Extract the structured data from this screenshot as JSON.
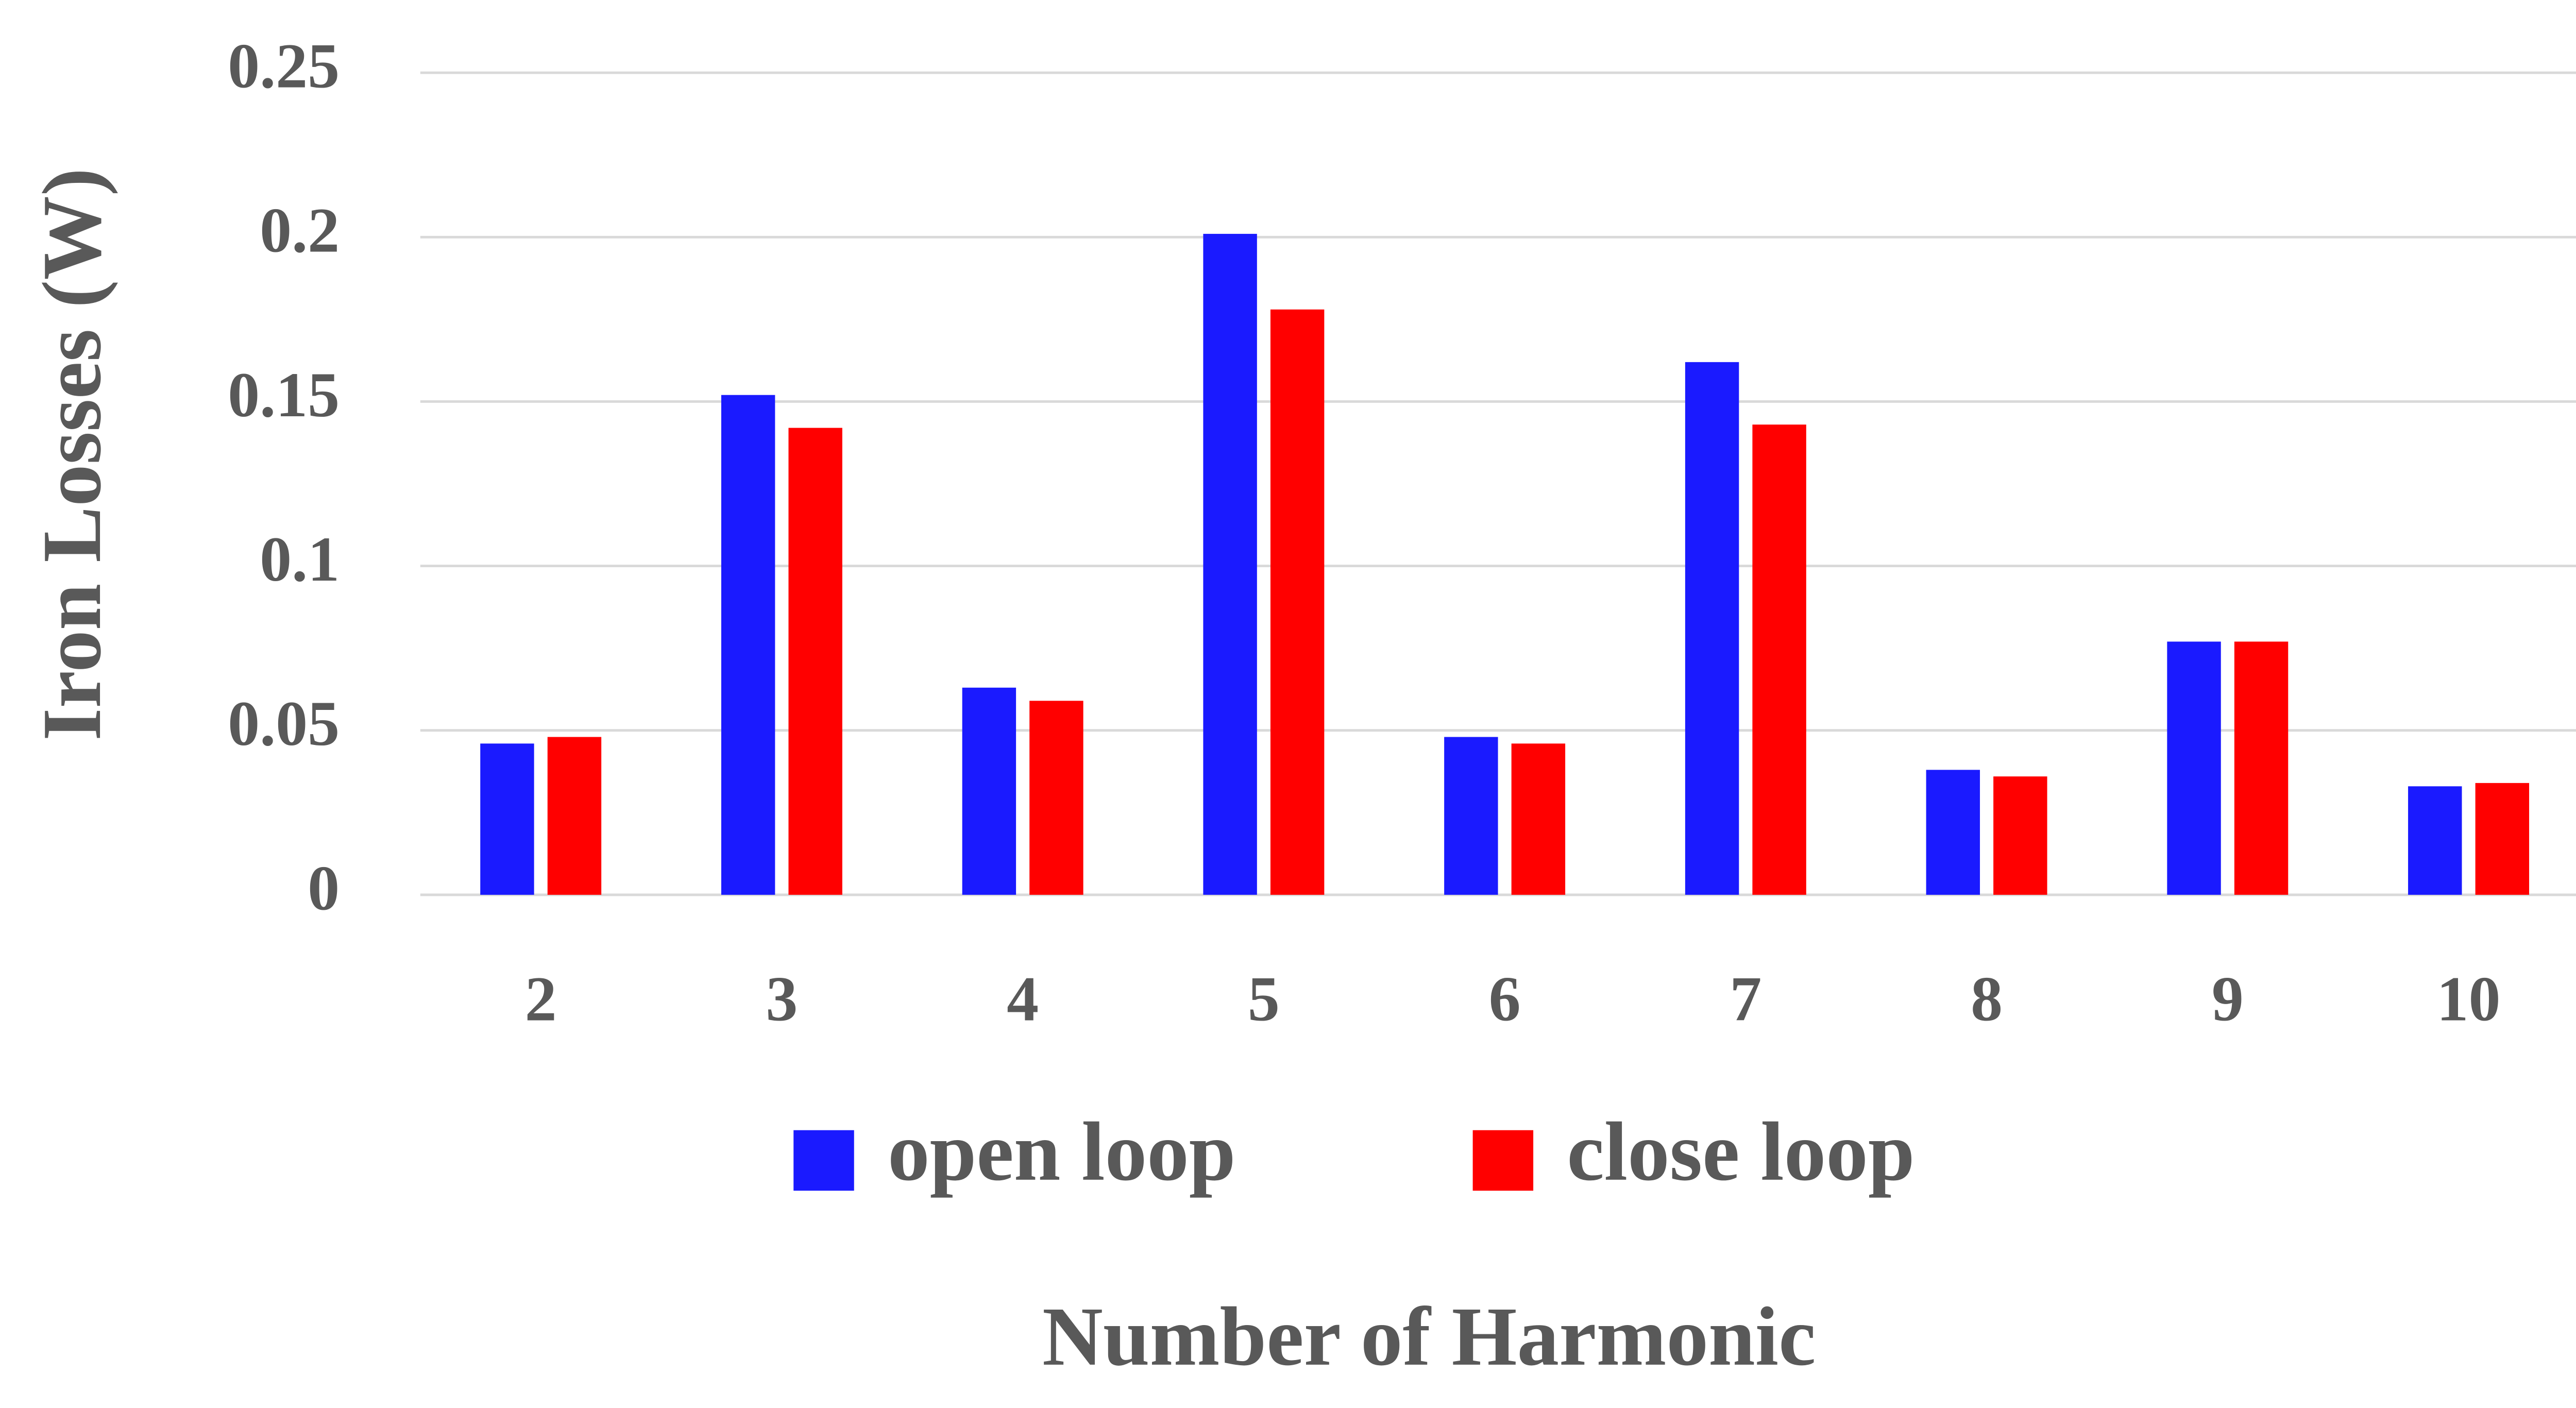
{
  "chart_data": {
    "type": "bar",
    "x_label": "Number of Harmonic",
    "y_label": "Iron Losses (W)",
    "categories": [
      "2",
      "3",
      "4",
      "5",
      "6",
      "7",
      "8",
      "9",
      "10"
    ],
    "series": [
      {
        "name": "open loop",
        "color": "#1a1aff",
        "values": [
          0.046,
          0.152,
          0.063,
          0.201,
          0.048,
          0.162,
          0.038,
          0.077,
          0.033
        ]
      },
      {
        "name": "close loop",
        "color": "#ff0000",
        "values": [
          0.048,
          0.142,
          0.059,
          0.178,
          0.046,
          0.143,
          0.036,
          0.077,
          0.034
        ]
      }
    ],
    "ylim": [
      0,
      0.25
    ],
    "yticks": [
      0,
      0.05,
      0.1,
      0.15,
      0.2,
      0.25
    ],
    "grid": true,
    "legend": "bottom"
  }
}
